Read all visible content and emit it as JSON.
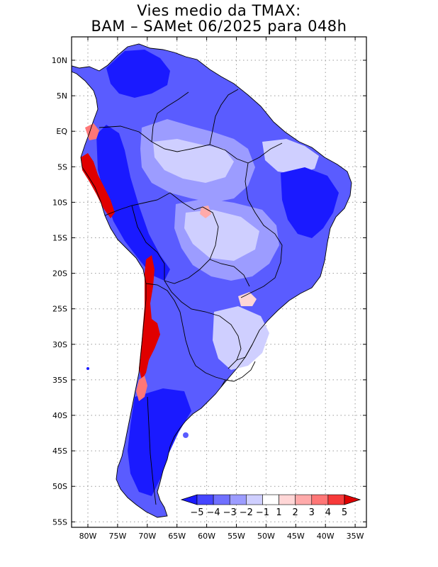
{
  "title": {
    "line1": "Vies medio da TMAX:",
    "line2": "BAM – SAMet 06/2025  para 048h"
  },
  "map": {
    "region": "South America",
    "variable": "TMAX bias",
    "lat_ticks": [
      "10N",
      "5N",
      "EQ",
      "5S",
      "10S",
      "15S",
      "20S",
      "25S",
      "30S",
      "35S",
      "40S",
      "45S",
      "50S",
      "55S"
    ],
    "lon_ticks": [
      "80W",
      "75W",
      "70W",
      "65W",
      "60W",
      "55W",
      "50W",
      "45W",
      "40W",
      "35W"
    ],
    "gridlines": "dotted"
  },
  "colorbar": {
    "labels": [
      "−5",
      "−4",
      "−3",
      "−2",
      "−1",
      "1",
      "2",
      "3",
      "4",
      "5"
    ],
    "colors": [
      "#1a1aff",
      "#4646ff",
      "#7070ff",
      "#9c9cff",
      "#cfcfff",
      "#ffffff",
      "#ffd6d6",
      "#ffaaaa",
      "#ff7777",
      "#f73a3a",
      "#e00000"
    ],
    "arrows": "both"
  }
}
